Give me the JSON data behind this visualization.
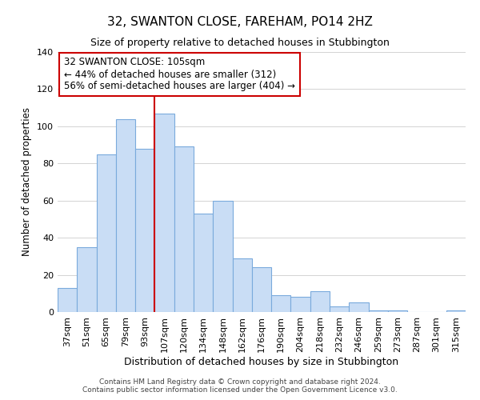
{
  "title": "32, SWANTON CLOSE, FAREHAM, PO14 2HZ",
  "subtitle": "Size of property relative to detached houses in Stubbington",
  "xlabel": "Distribution of detached houses by size in Stubbington",
  "ylabel": "Number of detached properties",
  "bar_labels": [
    "37sqm",
    "51sqm",
    "65sqm",
    "79sqm",
    "93sqm",
    "107sqm",
    "120sqm",
    "134sqm",
    "148sqm",
    "162sqm",
    "176sqm",
    "190sqm",
    "204sqm",
    "218sqm",
    "232sqm",
    "246sqm",
    "259sqm",
    "273sqm",
    "287sqm",
    "301sqm",
    "315sqm"
  ],
  "bar_values": [
    13,
    35,
    85,
    104,
    88,
    107,
    89,
    53,
    60,
    29,
    24,
    9,
    8,
    11,
    3,
    5,
    1,
    1,
    0,
    0,
    1
  ],
  "bar_color": "#c9ddf5",
  "bar_edge_color": "#7aaadc",
  "vline_x_index": 5,
  "vline_color": "#cc0000",
  "ylim": [
    0,
    140
  ],
  "yticks": [
    0,
    20,
    40,
    60,
    80,
    100,
    120,
    140
  ],
  "annotation_title": "32 SWANTON CLOSE: 105sqm",
  "annotation_line1": "← 44% of detached houses are smaller (312)",
  "annotation_line2": "56% of semi-detached houses are larger (404) →",
  "annotation_box_color": "#ffffff",
  "annotation_box_edge": "#cc0000",
  "footer_line1": "Contains HM Land Registry data © Crown copyright and database right 2024.",
  "footer_line2": "Contains public sector information licensed under the Open Government Licence v3.0.",
  "background_color": "#ffffff",
  "grid_color": "#cccccc"
}
